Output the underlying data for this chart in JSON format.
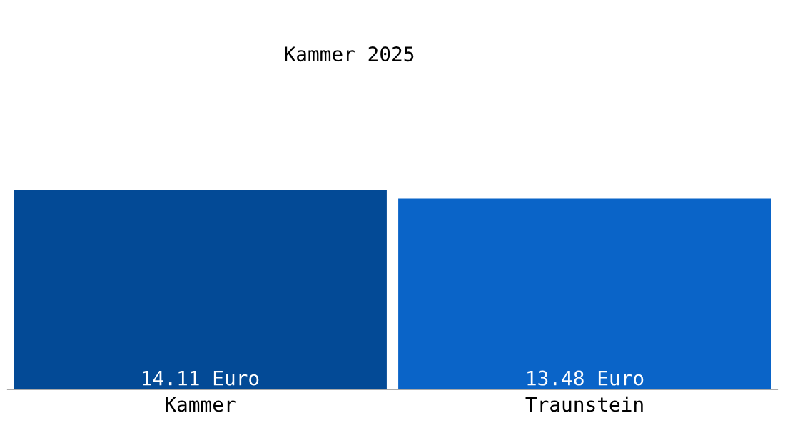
{
  "chart_data": {
    "type": "bar",
    "title": "Kammer 2025",
    "categories": [
      "Kammer",
      "Traunstein"
    ],
    "values": [
      14.11,
      13.48
    ],
    "colors": [
      "#034a96",
      "#0a64c8"
    ],
    "value_labels": [
      "14.11 Euro",
      "13.48 Euro"
    ],
    "grid": false,
    "legend": false,
    "tick_labels": "x"
  }
}
